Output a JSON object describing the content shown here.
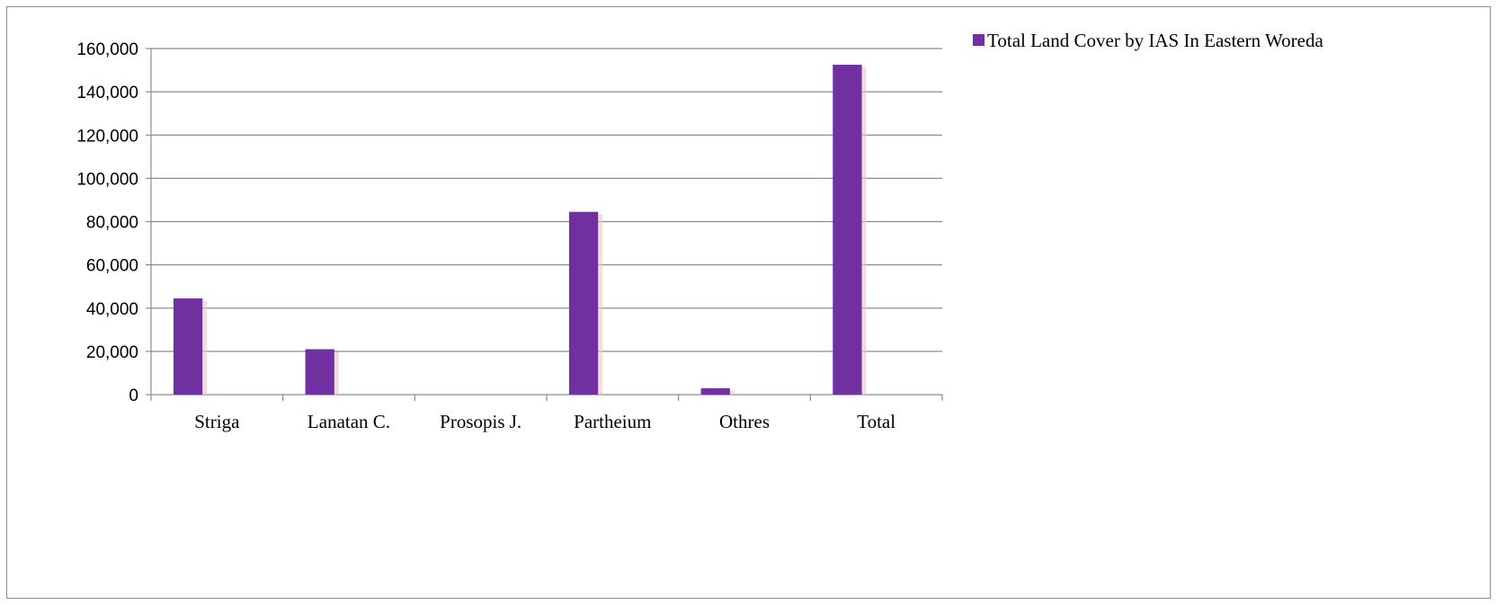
{
  "chart_data": {
    "type": "bar",
    "title": "",
    "xlabel": "",
    "ylabel": "",
    "categories": [
      "Striga",
      "Lanatan C.",
      "Prosopis J.",
      "Partheium",
      "Othres",
      "Total"
    ],
    "series": [
      {
        "name": "Total Land Cover by IAS In Eastern Woreda",
        "values": [
          44500,
          21000,
          0,
          84500,
          3000,
          152500
        ],
        "color": "#7030a0"
      }
    ],
    "ylim": [
      0,
      160000
    ],
    "yticks": [
      0,
      20000,
      40000,
      60000,
      80000,
      100000,
      120000,
      140000,
      160000
    ],
    "ytick_labels": [
      "0",
      "20,000",
      "40,000",
      "60,000",
      "80,000",
      "100,000",
      "120,000",
      "140,000",
      "160,000"
    ],
    "grid": true,
    "legend_position": "top-right"
  }
}
